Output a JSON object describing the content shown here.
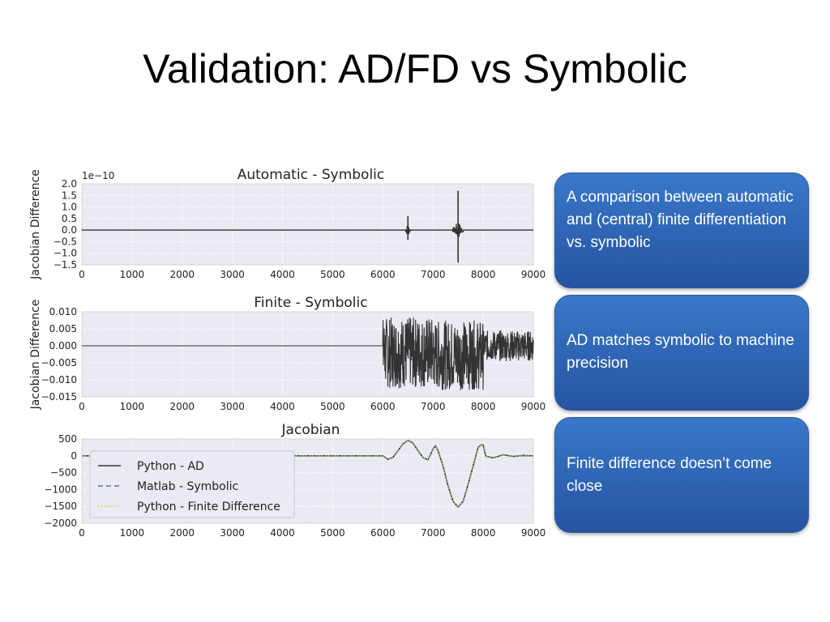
{
  "slide": {
    "title": "Validation: AD/FD vs Symbolic",
    "callouts": [
      "A comparison between automatic and (central) finite differentiation vs. symbolic",
      "AD matches symbolic to machine precision",
      "Finite difference doesn’t come close"
    ]
  },
  "colors": {
    "plot_bg": "#eaeaf2",
    "grid": "#ffffff",
    "line_dark": "#333333",
    "matlab": "#4c72b0",
    "finite_diff": "#c4c400",
    "callout": "#2f67b6"
  },
  "chart_data": [
    {
      "type": "line",
      "title": "Automatic - Symbolic",
      "ylabel": "Jacobian Difference",
      "scale_note": "1e−10",
      "xlim": [
        0,
        9000
      ],
      "ylim": [
        -1.5,
        2.0
      ],
      "x_ticks": [
        "0",
        "1000",
        "2000",
        "3000",
        "4000",
        "5000",
        "6000",
        "7000",
        "8000",
        "9000"
      ],
      "y_ticks": [
        "2.0",
        "1.5",
        "1.0",
        "0.5",
        "0.0",
        "−0.5",
        "−1.0",
        "−1.5"
      ],
      "y_tick_values": [
        2.0,
        1.5,
        1.0,
        0.5,
        0.0,
        -0.5,
        -1.0,
        -1.5
      ],
      "series": [
        {
          "style": "noise",
          "base": 0,
          "spikes": [
            {
              "x": 6500,
              "amp": 0.6
            },
            {
              "x": 7500,
              "amp": 1.7,
              "neg": -1.4
            }
          ],
          "bursts": [
            {
              "x": 6500,
              "width": 60,
              "amp": 0.3
            },
            {
              "x": 7500,
              "width": 120,
              "amp": 0.4
            }
          ]
        }
      ]
    },
    {
      "type": "line",
      "title": "Finite - Symbolic",
      "ylabel": "Jacobian Difference",
      "xlim": [
        0,
        9000
      ],
      "ylim": [
        -0.015,
        0.01
      ],
      "x_ticks": [
        "0",
        "1000",
        "2000",
        "3000",
        "4000",
        "5000",
        "6000",
        "7000",
        "8000",
        "9000"
      ],
      "y_ticks": [
        "0.010",
        "0.005",
        "0.000",
        "−0.005",
        "−0.010",
        "−0.015"
      ],
      "y_tick_values": [
        0.01,
        0.005,
        0.0,
        -0.005,
        -0.01,
        -0.015
      ],
      "series": [
        {
          "style": "noise",
          "flat_until": 6000,
          "noise_regions": [
            {
              "from": 6000,
              "to": 7000,
              "lo": -0.0125,
              "hi": 0.0085
            },
            {
              "from": 7000,
              "to": 8000,
              "lo": -0.013,
              "hi": 0.0075
            },
            {
              "from": 8000,
              "to": 9000,
              "lo": -0.0045,
              "hi": 0.0045
            }
          ]
        }
      ]
    },
    {
      "type": "line",
      "title": "Jacobian",
      "xlim": [
        0,
        9000
      ],
      "ylim": [
        -2000,
        500
      ],
      "x_ticks": [
        "0",
        "1000",
        "2000",
        "3000",
        "4000",
        "5000",
        "6000",
        "7000",
        "8000",
        "9000"
      ],
      "y_ticks": [
        "500",
        "0",
        "−500",
        "−1000",
        "−1500",
        "−2000"
      ],
      "y_tick_values": [
        500,
        0,
        -500,
        -1000,
        -1500,
        -2000
      ],
      "legend": {
        "placement": "left",
        "entries": [
          "Python - AD",
          "Matlab - Symbolic",
          "Python - Finite Difference"
        ]
      },
      "curve": {
        "x": [
          0,
          6000,
          6100,
          6200,
          6300,
          6400,
          6500,
          6600,
          6700,
          6800,
          6900,
          7000,
          7050,
          7100,
          7200,
          7300,
          7400,
          7500,
          7600,
          7700,
          7800,
          7900,
          7950,
          8000,
          8050,
          8200,
          8400,
          8600,
          8800,
          9000
        ],
        "y": [
          0,
          0,
          -100,
          -50,
          150,
          350,
          460,
          380,
          150,
          -50,
          -120,
          200,
          300,
          150,
          -300,
          -900,
          -1350,
          -1520,
          -1350,
          -850,
          -300,
          250,
          320,
          330,
          -10,
          -60,
          30,
          -20,
          10,
          0
        ]
      }
    }
  ]
}
